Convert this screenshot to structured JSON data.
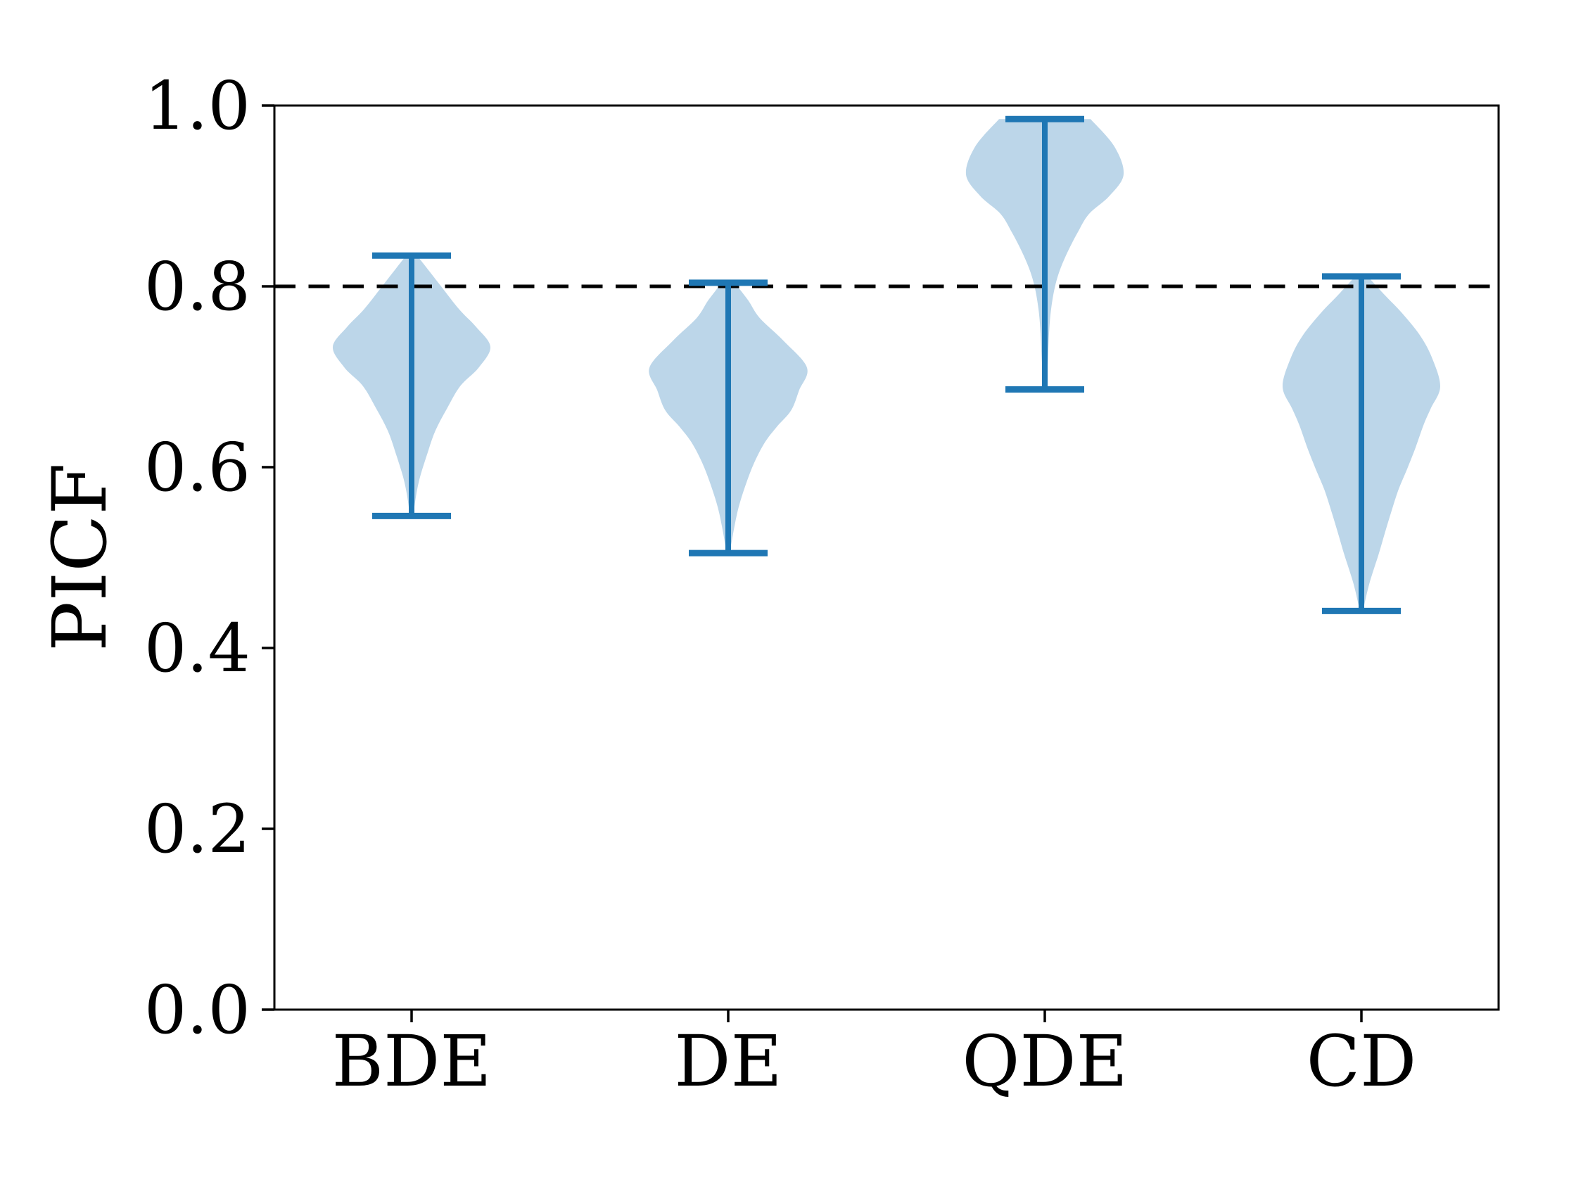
{
  "chart_data": {
    "type": "violin",
    "title": "",
    "xlabel": "",
    "ylabel": "PICF",
    "categories": [
      "BDE",
      "DE",
      "QDE",
      "CD"
    ],
    "ylim": [
      0.0,
      1.0
    ],
    "yticks": [
      "0.0",
      "0.2",
      "0.4",
      "0.6",
      "0.8",
      "1.0"
    ],
    "ytick_values": [
      0.0,
      0.2,
      0.4,
      0.6,
      0.8,
      1.0
    ],
    "grid": false,
    "legend": "none",
    "reference_line": {
      "y": 0.8,
      "style": "dashed",
      "color": "#000000"
    },
    "series": [
      {
        "name": "BDE",
        "min": 0.546,
        "max": 0.834,
        "peak_density_at": 0.733,
        "profile": [
          [
            0.834,
            0.07
          ],
          [
            0.805,
            0.33
          ],
          [
            0.775,
            0.6
          ],
          [
            0.755,
            0.82
          ],
          [
            0.733,
            1.0
          ],
          [
            0.71,
            0.85
          ],
          [
            0.69,
            0.62
          ],
          [
            0.665,
            0.45
          ],
          [
            0.64,
            0.3
          ],
          [
            0.615,
            0.2
          ],
          [
            0.59,
            0.11
          ],
          [
            0.57,
            0.06
          ],
          [
            0.546,
            0.02
          ]
        ]
      },
      {
        "name": "DE",
        "min": 0.505,
        "max": 0.804,
        "peak_density_at": 0.71,
        "profile": [
          [
            0.804,
            0.08
          ],
          [
            0.785,
            0.25
          ],
          [
            0.765,
            0.4
          ],
          [
            0.74,
            0.7
          ],
          [
            0.71,
            1.0
          ],
          [
            0.685,
            0.9
          ],
          [
            0.663,
            0.8
          ],
          [
            0.645,
            0.62
          ],
          [
            0.628,
            0.47
          ],
          [
            0.605,
            0.33
          ],
          [
            0.58,
            0.22
          ],
          [
            0.555,
            0.13
          ],
          [
            0.53,
            0.07
          ],
          [
            0.505,
            0.02
          ]
        ]
      },
      {
        "name": "QDE",
        "min": 0.686,
        "max": 0.985,
        "peak_density_at": 0.924,
        "profile": [
          [
            0.985,
            0.58
          ],
          [
            0.955,
            0.88
          ],
          [
            0.924,
            1.0
          ],
          [
            0.9,
            0.82
          ],
          [
            0.88,
            0.56
          ],
          [
            0.86,
            0.42
          ],
          [
            0.84,
            0.3
          ],
          [
            0.82,
            0.2
          ],
          [
            0.8,
            0.13
          ],
          [
            0.775,
            0.08
          ],
          [
            0.75,
            0.055
          ],
          [
            0.72,
            0.04
          ],
          [
            0.686,
            0.02
          ]
        ]
      },
      {
        "name": "CD",
        "min": 0.441,
        "max": 0.811,
        "peak_density_at": 0.689,
        "profile": [
          [
            0.811,
            0.08
          ],
          [
            0.79,
            0.3
          ],
          [
            0.77,
            0.52
          ],
          [
            0.745,
            0.75
          ],
          [
            0.72,
            0.9
          ],
          [
            0.689,
            1.0
          ],
          [
            0.665,
            0.88
          ],
          [
            0.647,
            0.79
          ],
          [
            0.62,
            0.68
          ],
          [
            0.598,
            0.58
          ],
          [
            0.575,
            0.47
          ],
          [
            0.551,
            0.38
          ],
          [
            0.525,
            0.29
          ],
          [
            0.504,
            0.22
          ],
          [
            0.471,
            0.1
          ],
          [
            0.441,
            0.02
          ]
        ]
      }
    ],
    "colors": {
      "violin_fill": "#bcd6e9",
      "violin_line": "#1f77b4",
      "axis": "#000000",
      "reference_line": "#000000",
      "background": "#ffffff"
    }
  }
}
